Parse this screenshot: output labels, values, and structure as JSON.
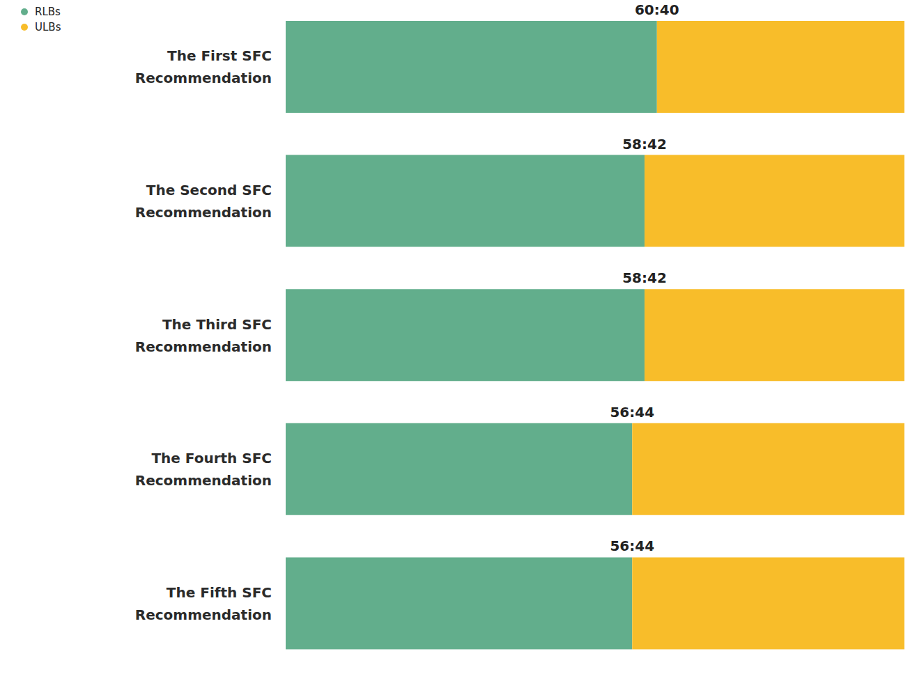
{
  "chart_data": {
    "type": "bar",
    "orientation": "horizontal",
    "stacked": true,
    "categories": [
      "The First SFC Recommendation",
      "The Second SFC Recommendation",
      "The Third SFC Recommendation",
      "The Fourth SFC Recommendation",
      "The Fifth SFC Recommendation"
    ],
    "series": [
      {
        "name": "RLBs",
        "color": "#62ae8c",
        "values": [
          60,
          58,
          58,
          56,
          56
        ],
        "value_labels": [
          "60:40",
          "58:42",
          "58:42",
          "56:44",
          "56:44"
        ]
      },
      {
        "name": "ULBs",
        "color": "#f8bd2a",
        "values": [
          40,
          42,
          42,
          44,
          44
        ]
      }
    ],
    "xlim": [
      0,
      100
    ],
    "data_labels": true,
    "tick_labels": "y",
    "grid": false,
    "legend": "top-left"
  }
}
